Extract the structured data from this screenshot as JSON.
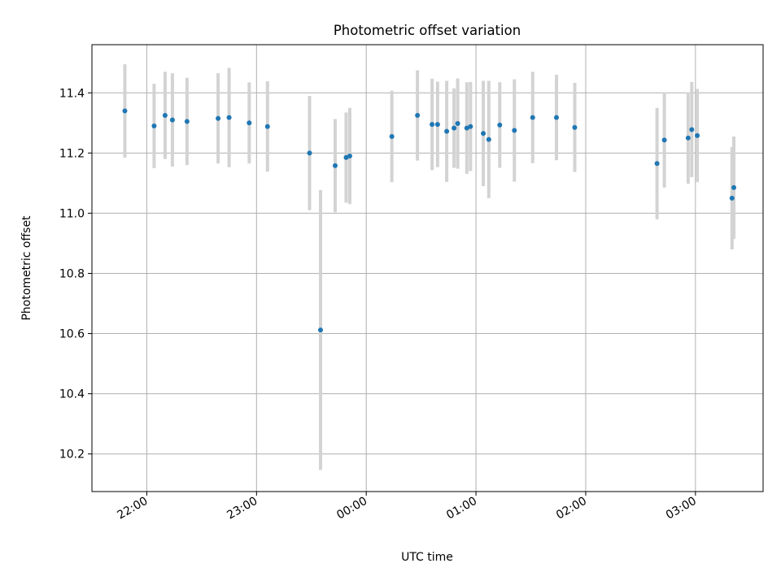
{
  "chart_data": {
    "type": "scatter",
    "title": "Photometric offset variation",
    "xlabel": "UTC time",
    "ylabel": "Photometric offset",
    "x_axis_type": "time",
    "xlim": [
      "21:30",
      "03:37"
    ],
    "ylim": [
      10.075,
      11.56
    ],
    "x_ticks": [
      "22:00",
      "23:00",
      "00:00",
      "01:00",
      "02:00",
      "03:00"
    ],
    "y_ticks": [
      10.2,
      10.4,
      10.6,
      10.8,
      11.0,
      11.2,
      11.4
    ],
    "grid": true,
    "legend": "none",
    "colors": {
      "points": "#1f77b4",
      "errorbars": "#d3d3d3",
      "grid": "#b0b0b0"
    },
    "points": [
      {
        "x": "21:48",
        "y": 11.34,
        "err": 0.155
      },
      {
        "x": "22:04",
        "y": 11.29,
        "err": 0.14
      },
      {
        "x": "22:10",
        "y": 11.325,
        "err": 0.145
      },
      {
        "x": "22:14",
        "y": 11.31,
        "err": 0.155
      },
      {
        "x": "22:22",
        "y": 11.305,
        "err": 0.145
      },
      {
        "x": "22:39",
        "y": 11.315,
        "err": 0.15
      },
      {
        "x": "22:45",
        "y": 11.318,
        "err": 0.165
      },
      {
        "x": "22:56",
        "y": 11.3,
        "err": 0.135
      },
      {
        "x": "23:06",
        "y": 11.288,
        "err": 0.15
      },
      {
        "x": "23:29",
        "y": 11.2,
        "err": 0.19
      },
      {
        "x": "23:35",
        "y": 10.612,
        "err": 0.465
      },
      {
        "x": "23:43",
        "y": 11.158,
        "err": 0.155
      },
      {
        "x": "23:49",
        "y": 11.185,
        "err": 0.15
      },
      {
        "x": "23:51",
        "y": 11.19,
        "err": 0.16
      },
      {
        "x": "00:14",
        "y": 11.255,
        "err": 0.152
      },
      {
        "x": "00:28",
        "y": 11.325,
        "err": 0.15
      },
      {
        "x": "00:36",
        "y": 11.295,
        "err": 0.152
      },
      {
        "x": "00:39",
        "y": 11.295,
        "err": 0.142
      },
      {
        "x": "00:44",
        "y": 11.272,
        "err": 0.168
      },
      {
        "x": "00:48",
        "y": 11.283,
        "err": 0.132
      },
      {
        "x": "00:50",
        "y": 11.298,
        "err": 0.15
      },
      {
        "x": "00:55",
        "y": 11.283,
        "err": 0.152
      },
      {
        "x": "00:57",
        "y": 11.288,
        "err": 0.148
      },
      {
        "x": "01:04",
        "y": 11.265,
        "err": 0.175
      },
      {
        "x": "01:07",
        "y": 11.245,
        "err": 0.195
      },
      {
        "x": "01:13",
        "y": 11.293,
        "err": 0.142
      },
      {
        "x": "01:21",
        "y": 11.275,
        "err": 0.17
      },
      {
        "x": "01:31",
        "y": 11.318,
        "err": 0.152
      },
      {
        "x": "01:44",
        "y": 11.318,
        "err": 0.142
      },
      {
        "x": "01:54",
        "y": 11.285,
        "err": 0.148
      },
      {
        "x": "02:39",
        "y": 11.165,
        "err": 0.185
      },
      {
        "x": "02:43",
        "y": 11.243,
        "err": 0.158
      },
      {
        "x": "02:56",
        "y": 11.25,
        "err": 0.152
      },
      {
        "x": "02:58",
        "y": 11.278,
        "err": 0.158
      },
      {
        "x": "03:01",
        "y": 11.258,
        "err": 0.155
      },
      {
        "x": "03:20",
        "y": 11.05,
        "err": 0.17
      },
      {
        "x": "03:21",
        "y": 11.085,
        "err": 0.17
      }
    ]
  }
}
